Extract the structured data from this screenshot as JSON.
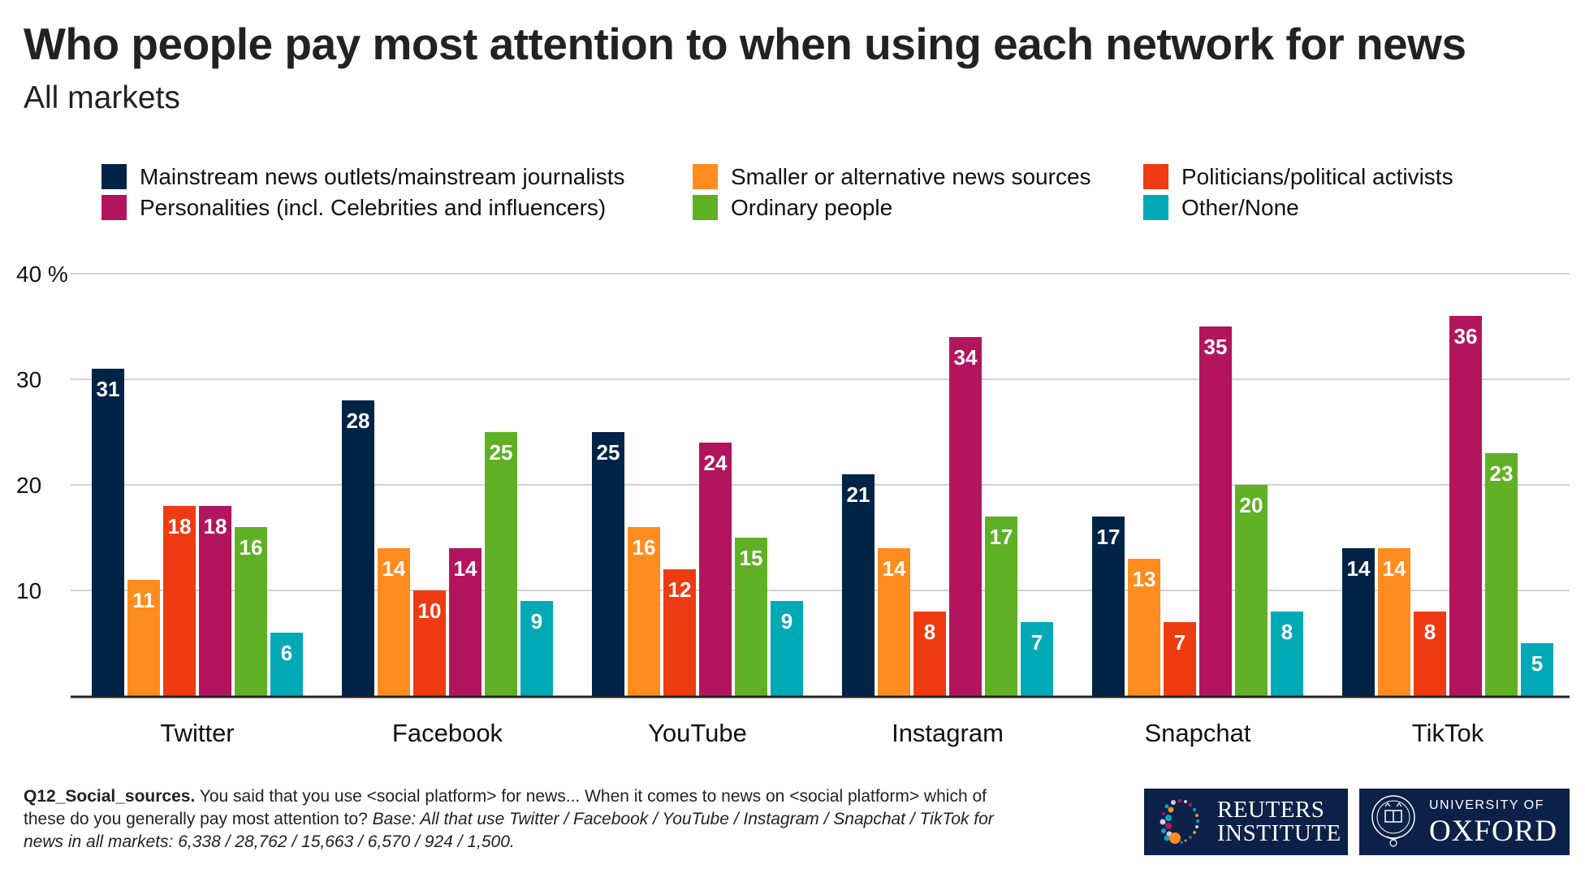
{
  "header": {
    "title": "Who people pay most attention to when using each network for news",
    "subtitle": "All markets"
  },
  "legend": [
    {
      "label": "Mainstream news outlets/mainstream journalists",
      "color": "#012346"
    },
    {
      "label": "Smaller or alternative news sources",
      "color": "#FF8C1E"
    },
    {
      "label": "Politicians/political activists",
      "color": "#EE3B12"
    },
    {
      "label": "Personalities (incl. Celebrities and influencers)",
      "color": "#B2155D"
    },
    {
      "label": "Ordinary people",
      "color": "#60B026"
    },
    {
      "label": "Other/None",
      "color": "#00A9B6"
    }
  ],
  "chart_data": {
    "type": "bar",
    "title": "Who people pay most attention to when using each network for news",
    "subtitle": "All markets",
    "xlabel": "",
    "ylabel": "",
    "ylim": [
      0,
      40
    ],
    "yticks": [
      10,
      20,
      30,
      40
    ],
    "ytick_labels": [
      "10",
      "20",
      "30",
      "40 %"
    ],
    "grid": true,
    "legend_position": "top",
    "categories": [
      "Twitter",
      "Facebook",
      "YouTube",
      "Instagram",
      "Snapchat",
      "TikTok"
    ],
    "series": [
      {
        "name": "Mainstream news outlets/mainstream journalists",
        "color": "#012346",
        "values": [
          31,
          28,
          25,
          21,
          17,
          14
        ]
      },
      {
        "name": "Smaller or alternative news sources",
        "color": "#FF8C1E",
        "values": [
          11,
          14,
          16,
          14,
          13,
          14
        ]
      },
      {
        "name": "Politicians/political activists",
        "color": "#EE3B12",
        "values": [
          18,
          10,
          12,
          8,
          7,
          8
        ]
      },
      {
        "name": "Personalities (incl. Celebrities and influencers)",
        "color": "#B2155D",
        "values": [
          18,
          14,
          24,
          34,
          35,
          36
        ]
      },
      {
        "name": "Ordinary people",
        "color": "#60B026",
        "values": [
          16,
          25,
          15,
          17,
          20,
          23
        ]
      },
      {
        "name": "Other/None",
        "color": "#00A9B6",
        "values": [
          6,
          9,
          9,
          7,
          8,
          5
        ]
      }
    ]
  },
  "footer": {
    "question_id": "Q12_Social_sources.",
    "question_text": " You said that you use <social platform> for news... When it comes to news on <social platform> which of these do you generally pay most attention to? ",
    "base_text": "Base: All that use Twitter / Facebook / YouTube / Instagram / Snapchat / TikTok for news in all markets: 6,338 / 28,762 / 15,663 / 6,570 / 924 / 1,500."
  },
  "logos": {
    "reuters_line1": "REUTERS",
    "reuters_line2": "INSTITUTE",
    "oxford_line1": "UNIVERSITY OF",
    "oxford_line2": "OXFORD"
  }
}
